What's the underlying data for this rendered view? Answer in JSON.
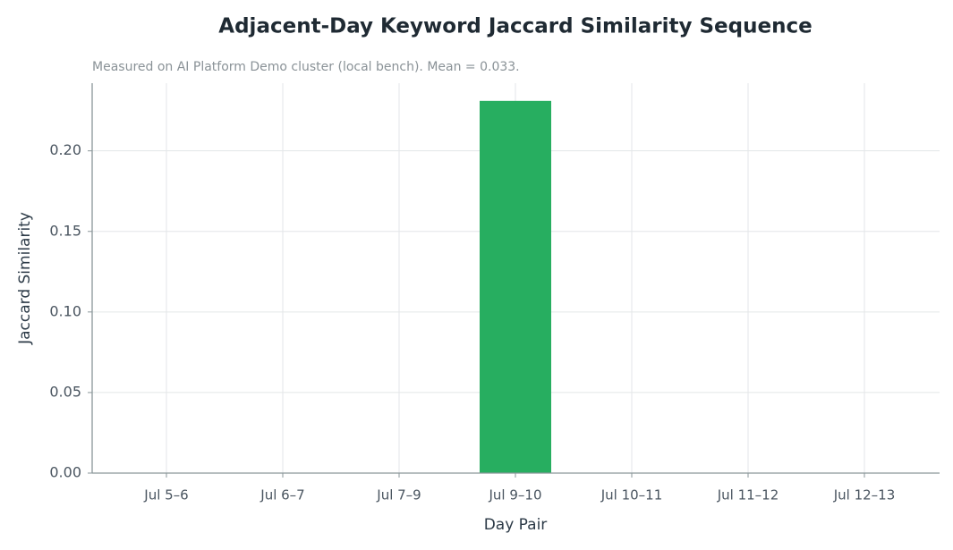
{
  "chart_data": {
    "type": "bar",
    "title": "Adjacent-Day Keyword Jaccard Similarity Sequence",
    "subtitle": "Measured on AI Platform Demo cluster (local bench). Mean = 0.033.",
    "xlabel": "Day Pair",
    "ylabel": "Jaccard Similarity",
    "categories": [
      "Jul 5–6",
      "Jul 6–7",
      "Jul 7–9",
      "Jul 9–10",
      "Jul 10–11",
      "Jul 11–12",
      "Jul 12–13"
    ],
    "values": [
      0,
      0,
      0,
      0.231,
      0,
      0,
      0
    ],
    "color": "#27ae60",
    "ylim": [
      0,
      0.242
    ],
    "yticks": [
      {
        "value": 0,
        "label": "0.00"
      },
      0.05,
      {
        "value": 0.1,
        "label": "0.10"
      },
      0.15,
      {
        "value": 0.2,
        "label": "0.20"
      }
    ],
    "grid": true
  }
}
